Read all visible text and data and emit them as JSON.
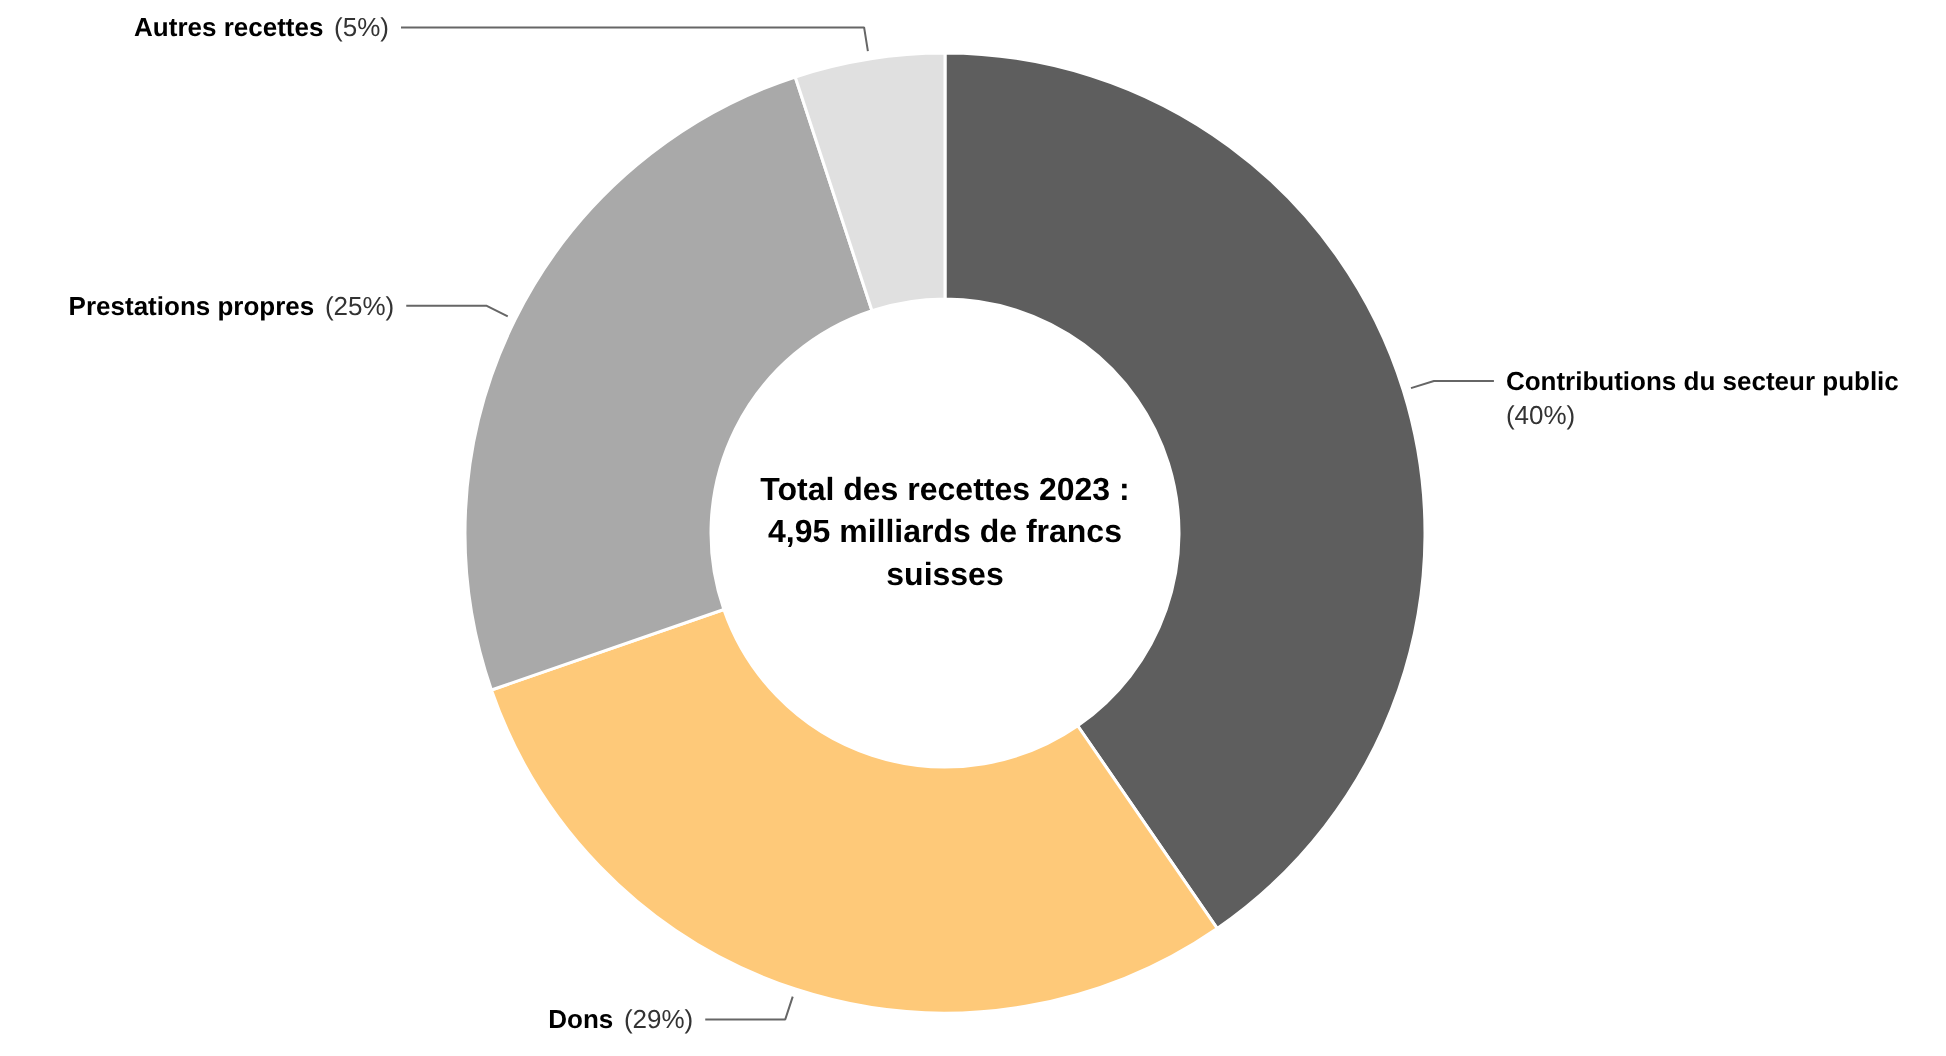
{
  "chart_data": {
    "type": "donut",
    "categories": [
      "Contributions du secteur public",
      "Dons",
      "Prestations propres",
      "Autres recettes"
    ],
    "values": [
      40,
      29,
      25,
      5
    ],
    "colors": [
      "#5e5e5e",
      "#fec979",
      "#a9a9a9",
      "#e0e0e0"
    ],
    "value_labels": [
      "(40%)",
      "(29%)",
      "(25%)",
      "(5%)"
    ],
    "annotations": [
      "Total des recettes 2023 :\n4,95 milliards de francs\nsuisses"
    ]
  }
}
